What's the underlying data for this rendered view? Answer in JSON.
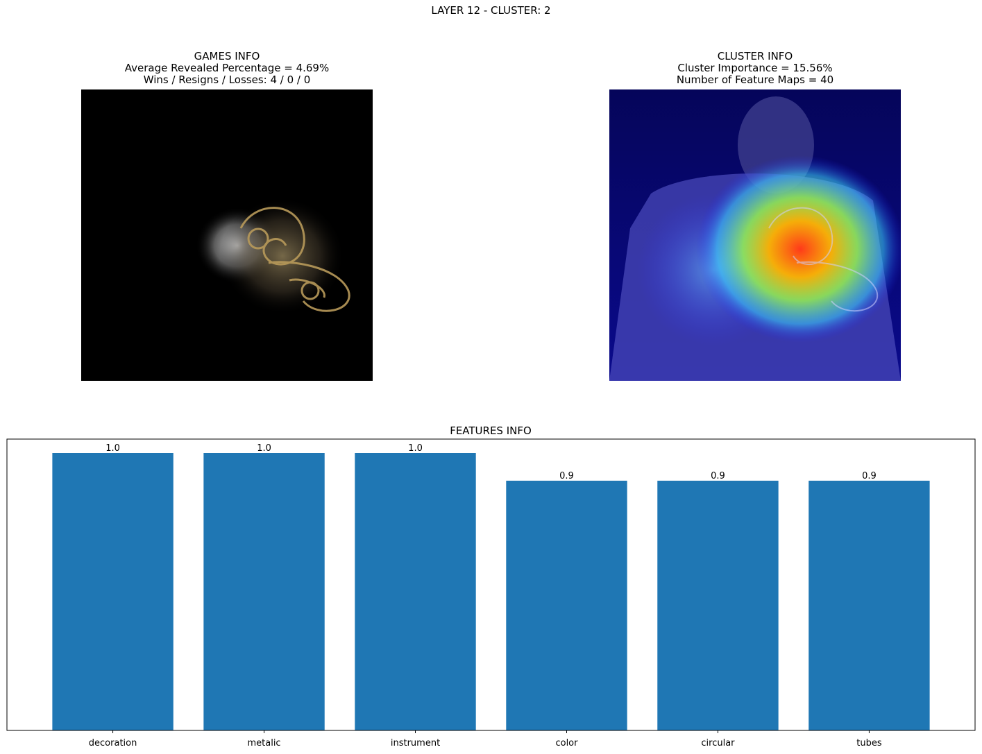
{
  "suptitle": "LAYER 12 - CLUSTER: 2",
  "games_info": {
    "title": "GAMES INFO",
    "line1": "Average Revealed Percentage = 4.69%",
    "line2": "Wins / Resigns / Losses: 4 / 0 / 0",
    "image": "masked-image-icon"
  },
  "cluster_info": {
    "title": "CLUSTER INFO",
    "line1": "Cluster Importance = 15.56%",
    "line2": "Number of Feature Maps = 40",
    "image": "heatmap-overlay-icon"
  },
  "colors": {
    "bar": "#1f77b4",
    "text": "#000000",
    "axis": "#000000"
  },
  "chart_data": {
    "type": "bar",
    "title": "FEATURES INFO",
    "categories": [
      "decoration",
      "metalic",
      "instrument",
      "color",
      "circular",
      "tubes"
    ],
    "values": [
      1.0,
      1.0,
      1.0,
      0.9,
      0.9,
      0.9
    ],
    "value_labels": [
      "1.0",
      "1.0",
      "1.0",
      "0.9",
      "0.9",
      "0.9"
    ],
    "xlabel": "",
    "ylabel": "",
    "ylim": [
      0,
      1.05
    ],
    "y_ticks_visible": false,
    "grid": false
  }
}
